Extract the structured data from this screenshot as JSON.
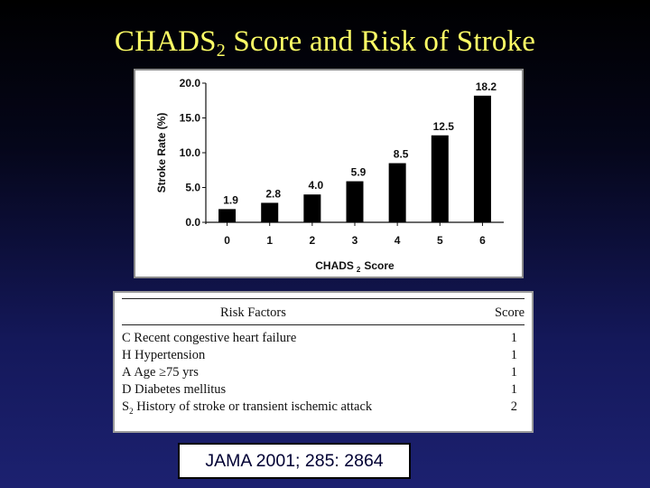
{
  "slide": {
    "title_main": "CHADS",
    "title_sub": "2",
    "title_rest": " Score and Risk of Stroke",
    "citation": "JAMA 2001; 285: 2864"
  },
  "chart_data": {
    "type": "bar",
    "categories": [
      "0",
      "1",
      "2",
      "3",
      "4",
      "5",
      "6"
    ],
    "values": [
      1.9,
      2.8,
      4.0,
      5.9,
      8.5,
      12.5,
      18.2
    ],
    "value_labels": [
      "1.9",
      "2.8",
      "4.0",
      "5.9",
      "8.5",
      "12.5",
      "18.2"
    ],
    "ylabel": "Stroke Rate (%)",
    "xlabel_main": "CHADS",
    "xlabel_sub": "2",
    "xlabel_rest": "Score",
    "ylim": [
      0,
      20
    ],
    "yticks": [
      "0.0",
      "5.0",
      "10.0",
      "15.0",
      "20.0"
    ],
    "grid": false,
    "colors": {
      "bar": "#000000",
      "axis": "#111111"
    }
  },
  "table": {
    "header_factor": "Risk Factors",
    "header_score": "Score",
    "rows": [
      {
        "letter": "C",
        "letter_sub": "",
        "text": "Recent congestive heart failure",
        "score": "1"
      },
      {
        "letter": "H",
        "letter_sub": "",
        "text": "Hypertension",
        "score": "1"
      },
      {
        "letter": "A",
        "letter_sub": "",
        "text": "Age ≥75 yrs",
        "score": "1"
      },
      {
        "letter": "D",
        "letter_sub": "",
        "text": "Diabetes mellitus",
        "score": "1"
      },
      {
        "letter": "S",
        "letter_sub": "2",
        "text": "History of stroke or transient ischemic attack",
        "score": "2"
      }
    ]
  }
}
